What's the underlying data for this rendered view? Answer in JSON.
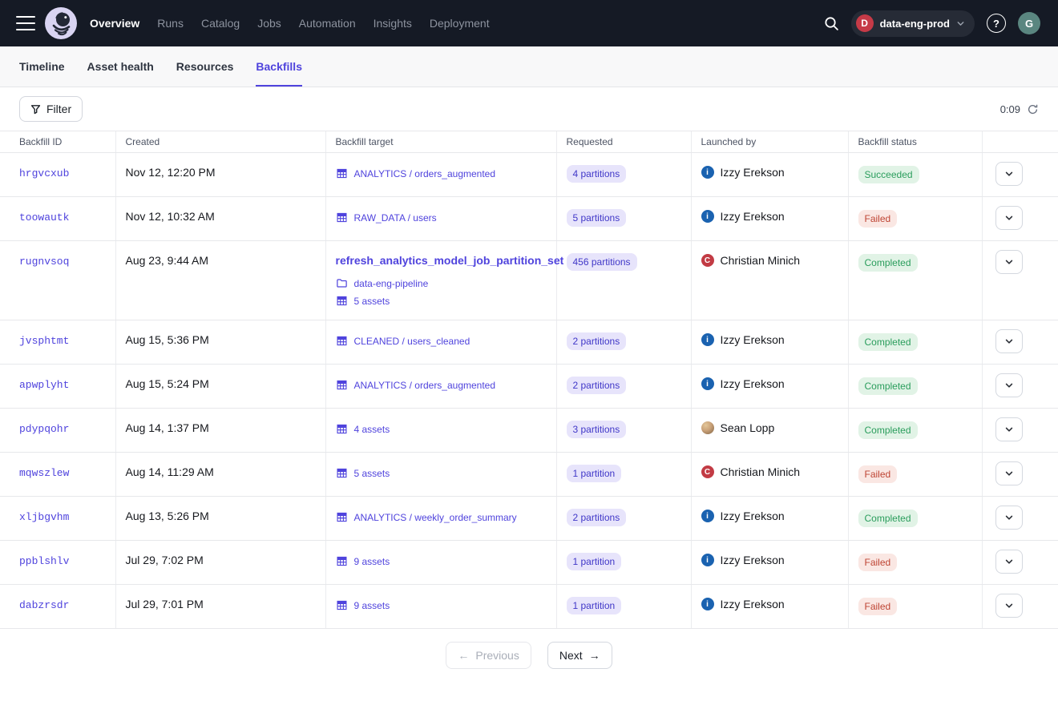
{
  "colors": {
    "accent": "#4f43dd",
    "topnav_bg": "#151a25",
    "success_text": "#2a9d5c",
    "success_bg": "#e1f3e6",
    "failed_text": "#be4433",
    "failed_bg": "#fae7e3",
    "partition_pill_bg": "#e7e4fb",
    "partition_pill_text": "#4037c8",
    "env_badge": "#c63a47",
    "avatar_izzy": "#1a62b0",
    "avatar_christian": "#c23b44",
    "user_avatar": "#5a8680"
  },
  "topnav": {
    "items": [
      {
        "label": "Overview",
        "active": true
      },
      {
        "label": "Runs",
        "active": false
      },
      {
        "label": "Catalog",
        "active": false
      },
      {
        "label": "Jobs",
        "active": false
      },
      {
        "label": "Automation",
        "active": false
      },
      {
        "label": "Insights",
        "active": false
      },
      {
        "label": "Deployment",
        "active": false
      }
    ],
    "environment": {
      "initial": "D",
      "name": "data-eng-prod"
    },
    "help_glyph": "?",
    "user_initial": "G"
  },
  "tabs": [
    {
      "label": "Timeline",
      "active": false
    },
    {
      "label": "Asset health",
      "active": false
    },
    {
      "label": "Resources",
      "active": false
    },
    {
      "label": "Backfills",
      "active": true
    }
  ],
  "toolbar": {
    "filter_label": "Filter",
    "refresh_timer": "0:09"
  },
  "table": {
    "columns": [
      "Backfill ID",
      "Created",
      "Backfill target",
      "Requested",
      "Launched by",
      "Backfill status",
      ""
    ],
    "rows": [
      {
        "id": "hrgvcxub",
        "created": "Nov 12, 12:20 PM",
        "target": {
          "job": null,
          "lines": [
            {
              "icon": "asset",
              "text": "ANALYTICS / orders_augmented"
            }
          ]
        },
        "requested": "4 partitions",
        "launched_by": {
          "name": "Izzy Erekson",
          "avatar": "izzy"
        },
        "status": {
          "label": "Succeeded",
          "kind": "success"
        }
      },
      {
        "id": "toowautk",
        "created": "Nov 12, 10:32 AM",
        "target": {
          "job": null,
          "lines": [
            {
              "icon": "asset",
              "text": "RAW_DATA / users"
            }
          ]
        },
        "requested": "5 partitions",
        "launched_by": {
          "name": "Izzy Erekson",
          "avatar": "izzy"
        },
        "status": {
          "label": "Failed",
          "kind": "fail"
        }
      },
      {
        "id": "rugnvsoq",
        "created": "Aug 23, 9:44 AM",
        "target": {
          "job": "refresh_analytics_model_job_partition_set",
          "lines": [
            {
              "icon": "folder",
              "text": "data-eng-pipeline"
            },
            {
              "icon": "asset",
              "text": "5 assets"
            }
          ]
        },
        "requested": "456 partitions",
        "launched_by": {
          "name": "Christian Minich",
          "avatar": "christian"
        },
        "status": {
          "label": "Completed",
          "kind": "success"
        }
      },
      {
        "id": "jvsphtmt",
        "created": "Aug 15, 5:36 PM",
        "target": {
          "job": null,
          "lines": [
            {
              "icon": "asset",
              "text": "CLEANED / users_cleaned"
            }
          ]
        },
        "requested": "2 partitions",
        "launched_by": {
          "name": "Izzy Erekson",
          "avatar": "izzy"
        },
        "status": {
          "label": "Completed",
          "kind": "success"
        }
      },
      {
        "id": "apwplyht",
        "created": "Aug 15, 5:24 PM",
        "target": {
          "job": null,
          "lines": [
            {
              "icon": "asset",
              "text": "ANALYTICS / orders_augmented"
            }
          ]
        },
        "requested": "2 partitions",
        "launched_by": {
          "name": "Izzy Erekson",
          "avatar": "izzy"
        },
        "status": {
          "label": "Completed",
          "kind": "success"
        }
      },
      {
        "id": "pdypqohr",
        "created": "Aug 14, 1:37 PM",
        "target": {
          "job": null,
          "lines": [
            {
              "icon": "asset",
              "text": "4 assets"
            }
          ]
        },
        "requested": "3 partitions",
        "launched_by": {
          "name": "Sean Lopp",
          "avatar": "sean"
        },
        "status": {
          "label": "Completed",
          "kind": "success"
        }
      },
      {
        "id": "mqwszlew",
        "created": "Aug 14, 11:29 AM",
        "target": {
          "job": null,
          "lines": [
            {
              "icon": "asset",
              "text": "5 assets"
            }
          ]
        },
        "requested": "1 partition",
        "launched_by": {
          "name": "Christian Minich",
          "avatar": "christian"
        },
        "status": {
          "label": "Failed",
          "kind": "fail"
        }
      },
      {
        "id": "xljbgvhm",
        "created": "Aug 13, 5:26 PM",
        "target": {
          "job": null,
          "lines": [
            {
              "icon": "asset",
              "text": "ANALYTICS / weekly_order_summary"
            }
          ]
        },
        "requested": "2 partitions",
        "launched_by": {
          "name": "Izzy Erekson",
          "avatar": "izzy"
        },
        "status": {
          "label": "Completed",
          "kind": "success"
        }
      },
      {
        "id": "ppblshlv",
        "created": "Jul 29, 7:02 PM",
        "target": {
          "job": null,
          "lines": [
            {
              "icon": "asset",
              "text": "9 assets"
            }
          ]
        },
        "requested": "1 partition",
        "launched_by": {
          "name": "Izzy Erekson",
          "avatar": "izzy"
        },
        "status": {
          "label": "Failed",
          "kind": "fail"
        }
      },
      {
        "id": "dabzrsdr",
        "created": "Jul 29, 7:01 PM",
        "target": {
          "job": null,
          "lines": [
            {
              "icon": "asset",
              "text": "9 assets"
            }
          ]
        },
        "requested": "1 partition",
        "launched_by": {
          "name": "Izzy Erekson",
          "avatar": "izzy"
        },
        "status": {
          "label": "Failed",
          "kind": "fail"
        }
      }
    ]
  },
  "avatars": {
    "izzy": {
      "type": "initial",
      "initial": "i",
      "color": "#1a62b0"
    },
    "christian": {
      "type": "initial",
      "initial": "C",
      "color": "#c23b44"
    },
    "sean": {
      "type": "photo",
      "color": "#c9a178"
    }
  },
  "pagination": {
    "previous": "Previous",
    "next": "Next",
    "prev_arrow": "←",
    "next_arrow": "→"
  }
}
